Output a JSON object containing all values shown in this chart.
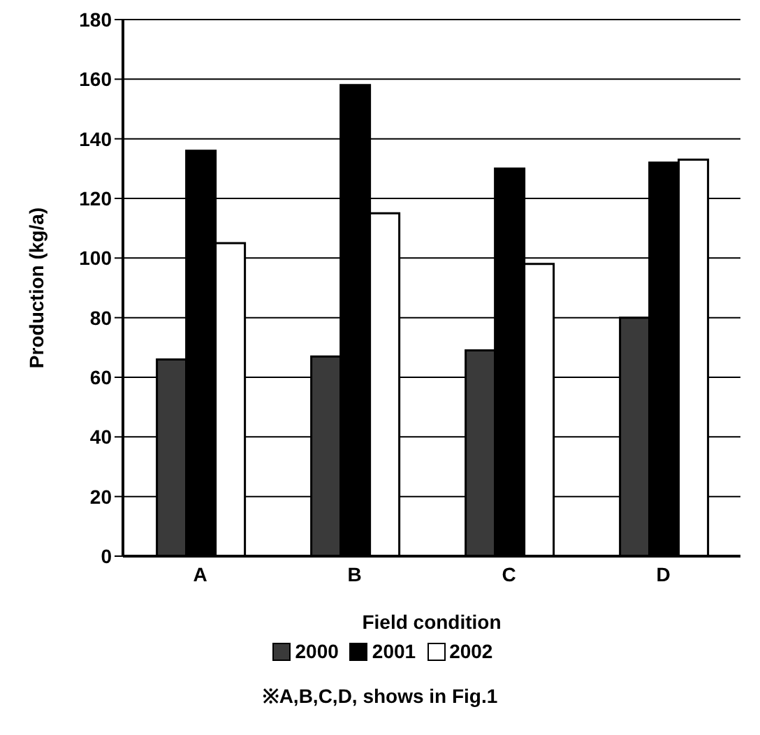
{
  "chart_data": {
    "type": "bar",
    "xlabel": "Field condition",
    "ylabel": "Production  (kg/a)",
    "categories": [
      "A",
      "B",
      "C",
      "D"
    ],
    "series": [
      {
        "name": "2000",
        "color": "#3a3a3a",
        "values": [
          66,
          67,
          69,
          80
        ]
      },
      {
        "name": "2001",
        "color": "#000000",
        "values": [
          136,
          158,
          130,
          132
        ]
      },
      {
        "name": "2002",
        "color": "#ffffff",
        "values": [
          105,
          115,
          98,
          133
        ]
      }
    ],
    "ylim": [
      0,
      180
    ],
    "yticks": [
      0,
      20,
      40,
      60,
      80,
      100,
      120,
      140,
      160,
      180
    ],
    "grid": "y",
    "legend": "bottom",
    "annotations": [
      "※A,B,C,D, shows in Fig.1"
    ]
  }
}
